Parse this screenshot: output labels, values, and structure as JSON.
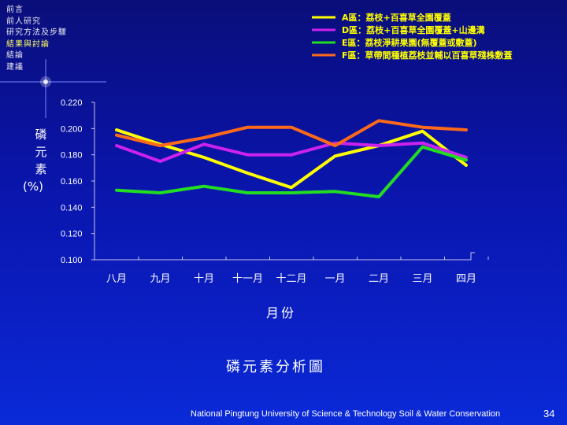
{
  "nav": {
    "items": [
      {
        "label": "前言",
        "active": false
      },
      {
        "label": "前人研究",
        "active": false
      },
      {
        "label": "研究方法及步驟",
        "active": false
      },
      {
        "label": "結果與討論",
        "active": true
      },
      {
        "label": "結論",
        "active": false
      },
      {
        "label": "建議",
        "active": false
      }
    ]
  },
  "chart_data": {
    "type": "line",
    "title": "磷元素分析圖",
    "xlabel": "月份",
    "ylabel": "磷元素(%)",
    "ylabel_lines": [
      "磷",
      "元",
      "素",
      "(%)"
    ],
    "categories": [
      "八月",
      "九月",
      "十月",
      "十一月",
      "十二月",
      "一月",
      "二月",
      "三月",
      "四月"
    ],
    "ylim": [
      0.1,
      0.22
    ],
    "y_ticks": [
      "0.220",
      "0.200",
      "0.180",
      "0.160",
      "0.140",
      "0.120",
      "0.100"
    ],
    "y_tick_values": [
      0.22,
      0.2,
      0.18,
      0.16,
      0.14,
      0.12,
      0.1
    ],
    "legend_position": "top-right",
    "series": [
      {
        "name": "A區：荔枝+百喜草全園覆蓋",
        "color": "#ffff00",
        "values": [
          0.199,
          0.188,
          0.178,
          0.166,
          0.155,
          0.179,
          0.187,
          0.198,
          0.172
        ]
      },
      {
        "name": "D區：荔枝+百喜草全園覆蓋+山邊溝",
        "color": "#cc22ee",
        "values": [
          0.187,
          0.175,
          0.188,
          0.18,
          0.18,
          0.189,
          0.187,
          0.189,
          0.178
        ]
      },
      {
        "name": "E區：荔枝淨耕果園(無覆蓋或敷蓋)",
        "color": "#22dd22",
        "values": [
          0.153,
          0.151,
          0.156,
          0.151,
          0.151,
          0.152,
          0.148,
          0.186,
          0.176
        ]
      },
      {
        "name": "F區：草帶間種植荔枝並輔以百喜草殘株敷蓋",
        "color": "#ff6a1a",
        "values": [
          0.195,
          0.187,
          0.193,
          0.201,
          0.201,
          0.187,
          0.206,
          0.201,
          0.199
        ]
      }
    ]
  },
  "footer": {
    "text": "National Pingtung University of Science & Technology   Soil & Water Conservation",
    "page": "34"
  }
}
